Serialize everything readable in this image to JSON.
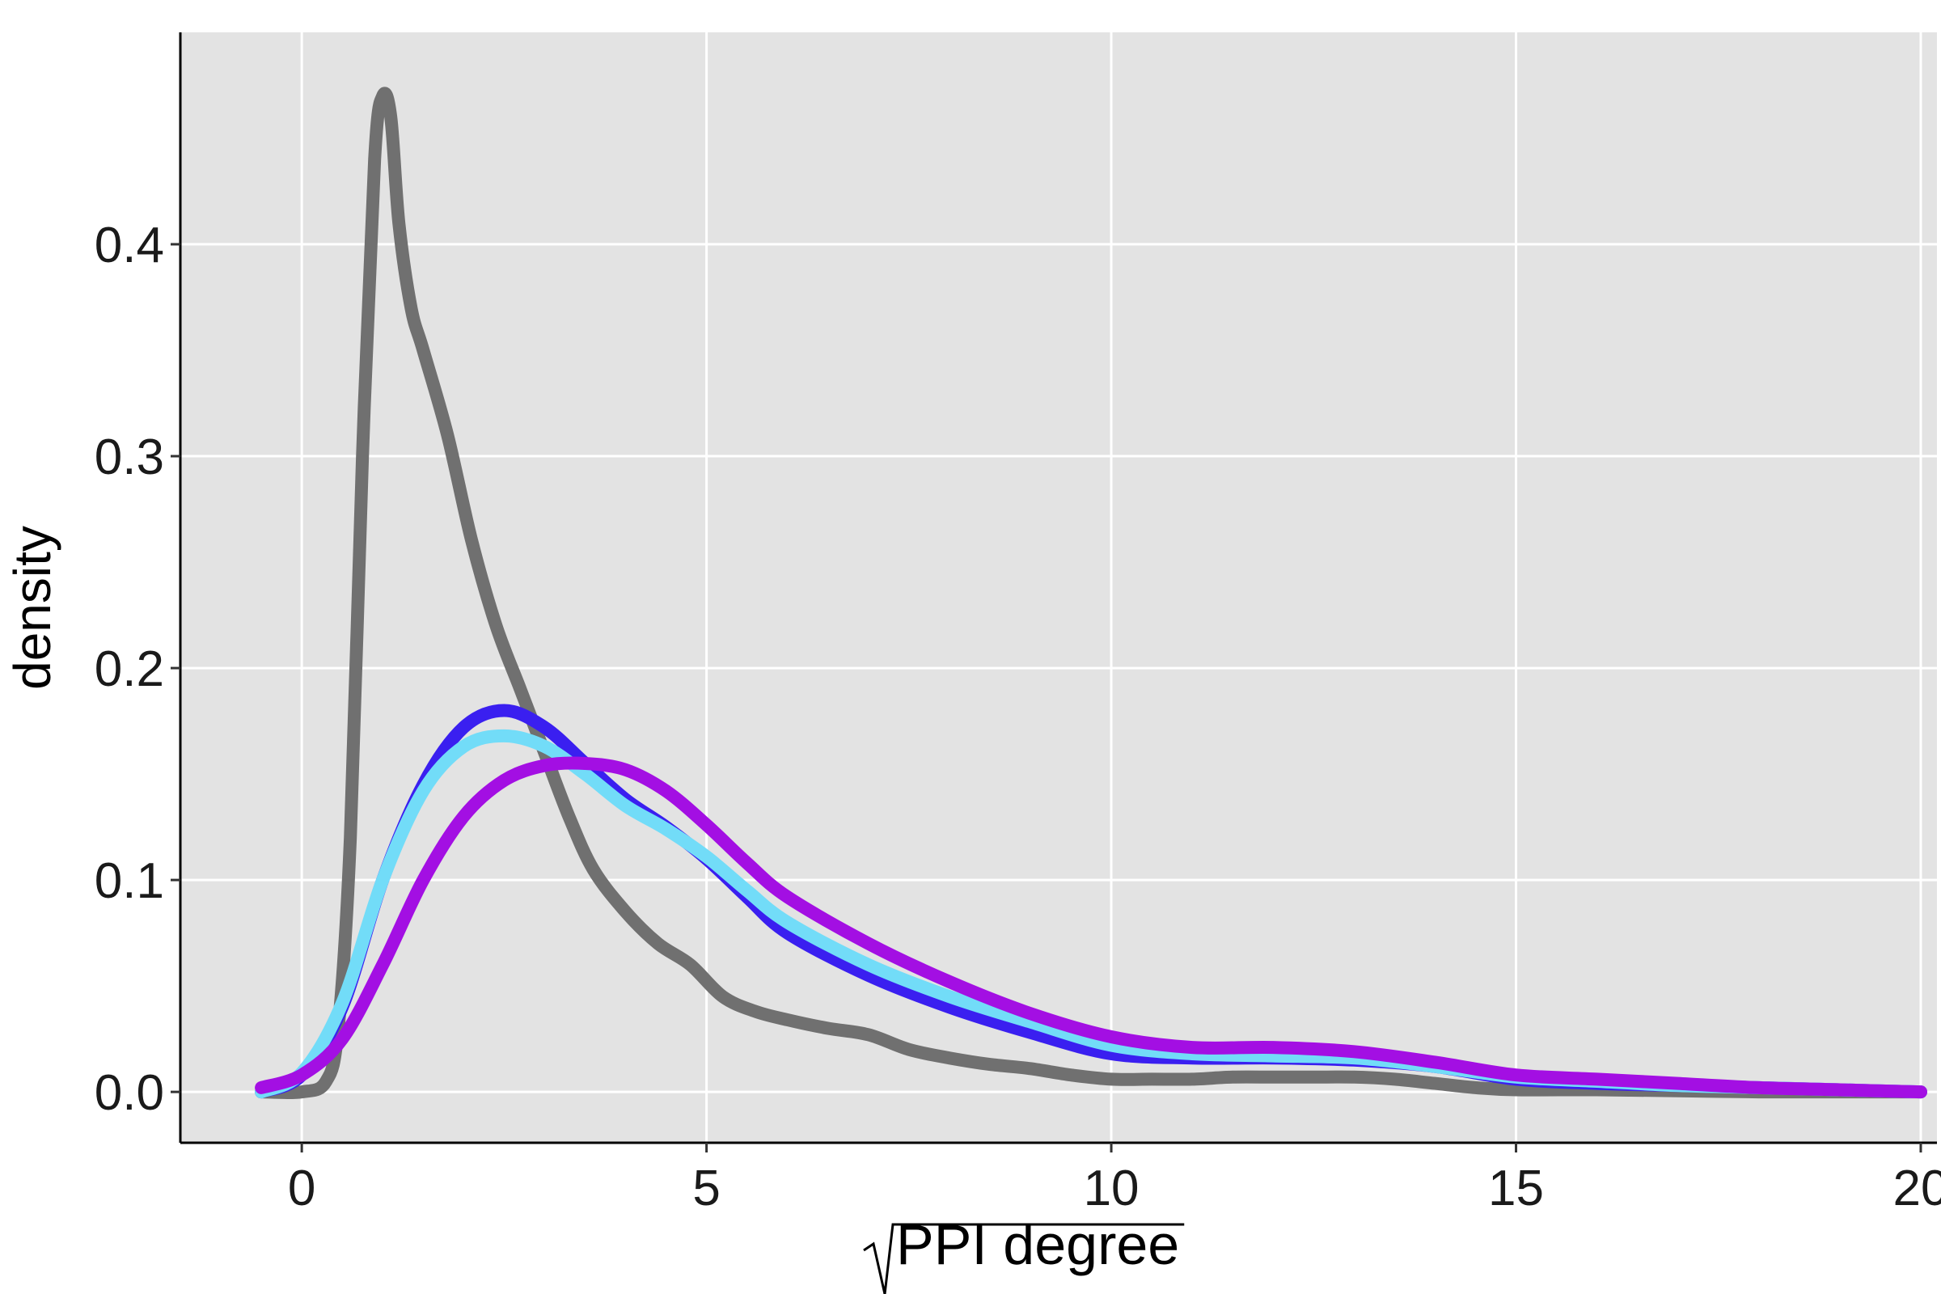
{
  "chart_data": {
    "type": "line",
    "title": "",
    "xlabel": "PPI degree",
    "xlabel_sqrt": true,
    "ylabel": "density",
    "xlim": [
      -1.5,
      20.2
    ],
    "ylim": [
      -0.024,
      0.5
    ],
    "x_ticks": [
      0,
      5,
      10,
      15,
      20
    ],
    "x_tick_labels": [
      "0",
      "5",
      "10",
      "15",
      "20"
    ],
    "y_ticks": [
      0.0,
      0.1,
      0.2,
      0.3,
      0.4
    ],
    "y_tick_labels": [
      "0.0",
      "0.1",
      "0.2",
      "0.3",
      "0.4"
    ],
    "grid": true,
    "legend": "none",
    "panel_background": "#e3e3e3",
    "grid_color": "#ffffff",
    "series": [
      {
        "color": "#707070",
        "x": [
          -0.5,
          0.0,
          0.3,
          0.45,
          0.6,
          0.75,
          0.9,
          1.0,
          1.1,
          1.2,
          1.35,
          1.5,
          1.8,
          2.1,
          2.4,
          2.7,
          3.0,
          3.3,
          3.6,
          4.0,
          4.4,
          4.8,
          5.2,
          5.6,
          6.0,
          6.5,
          7.0,
          7.5,
          8.0,
          8.5,
          9.0,
          9.5,
          10.0,
          10.5,
          11.0,
          11.5,
          12.0,
          12.5,
          13.0,
          13.5,
          14.0,
          14.5,
          15.0,
          16.0,
          17.0,
          18.0,
          19.0,
          20.0
        ],
        "y": [
          0.0,
          0.0,
          0.005,
          0.03,
          0.12,
          0.3,
          0.44,
          0.47,
          0.46,
          0.41,
          0.37,
          0.35,
          0.31,
          0.26,
          0.22,
          0.19,
          0.16,
          0.13,
          0.105,
          0.085,
          0.07,
          0.06,
          0.045,
          0.038,
          0.034,
          0.03,
          0.027,
          0.02,
          0.016,
          0.013,
          0.011,
          0.008,
          0.006,
          0.006,
          0.006,
          0.007,
          0.007,
          0.007,
          0.007,
          0.006,
          0.004,
          0.002,
          0.001,
          0.001,
          0.0005,
          0.0,
          0.0,
          0.0
        ]
      },
      {
        "color": "#3a1ff0",
        "x": [
          -0.5,
          0.0,
          0.5,
          1.0,
          1.5,
          2.0,
          2.5,
          3.0,
          3.5,
          4.0,
          4.5,
          5.0,
          5.5,
          6.0,
          7.0,
          8.0,
          9.0,
          10.0,
          11.0,
          12.0,
          13.0,
          14.0,
          15.0,
          16.0,
          17.0,
          18.0,
          19.0,
          20.0
        ],
        "y": [
          0.0,
          0.008,
          0.04,
          0.1,
          0.145,
          0.172,
          0.18,
          0.172,
          0.155,
          0.138,
          0.125,
          0.11,
          0.092,
          0.075,
          0.055,
          0.04,
          0.028,
          0.018,
          0.016,
          0.016,
          0.015,
          0.012,
          0.006,
          0.004,
          0.003,
          0.002,
          0.001,
          0.0
        ]
      },
      {
        "color": "#72dcf8",
        "x": [
          -0.5,
          0.0,
          0.5,
          1.0,
          1.5,
          2.0,
          2.5,
          3.0,
          3.5,
          4.0,
          4.5,
          5.0,
          5.5,
          6.0,
          7.0,
          8.0,
          9.0,
          10.0,
          11.0,
          12.0,
          13.0,
          14.0,
          15.0,
          16.0,
          17.0,
          18.0,
          19.0,
          20.0
        ],
        "y": [
          0.0,
          0.009,
          0.042,
          0.1,
          0.142,
          0.163,
          0.168,
          0.163,
          0.15,
          0.135,
          0.124,
          0.111,
          0.095,
          0.08,
          0.06,
          0.045,
          0.033,
          0.022,
          0.018,
          0.017,
          0.016,
          0.012,
          0.007,
          0.005,
          0.003,
          0.002,
          0.001,
          0.0
        ]
      },
      {
        "color": "#a30fe3",
        "x": [
          -0.5,
          0.0,
          0.5,
          1.0,
          1.5,
          2.0,
          2.5,
          3.0,
          3.5,
          4.0,
          4.5,
          5.0,
          5.5,
          6.0,
          7.0,
          8.0,
          9.0,
          10.0,
          11.0,
          12.0,
          13.0,
          14.0,
          15.0,
          16.0,
          17.0,
          18.0,
          19.0,
          20.0
        ],
        "y": [
          0.002,
          0.008,
          0.025,
          0.06,
          0.1,
          0.13,
          0.147,
          0.154,
          0.155,
          0.152,
          0.142,
          0.126,
          0.108,
          0.092,
          0.07,
          0.052,
          0.037,
          0.026,
          0.021,
          0.021,
          0.019,
          0.014,
          0.008,
          0.006,
          0.004,
          0.002,
          0.001,
          0.0
        ]
      }
    ]
  }
}
